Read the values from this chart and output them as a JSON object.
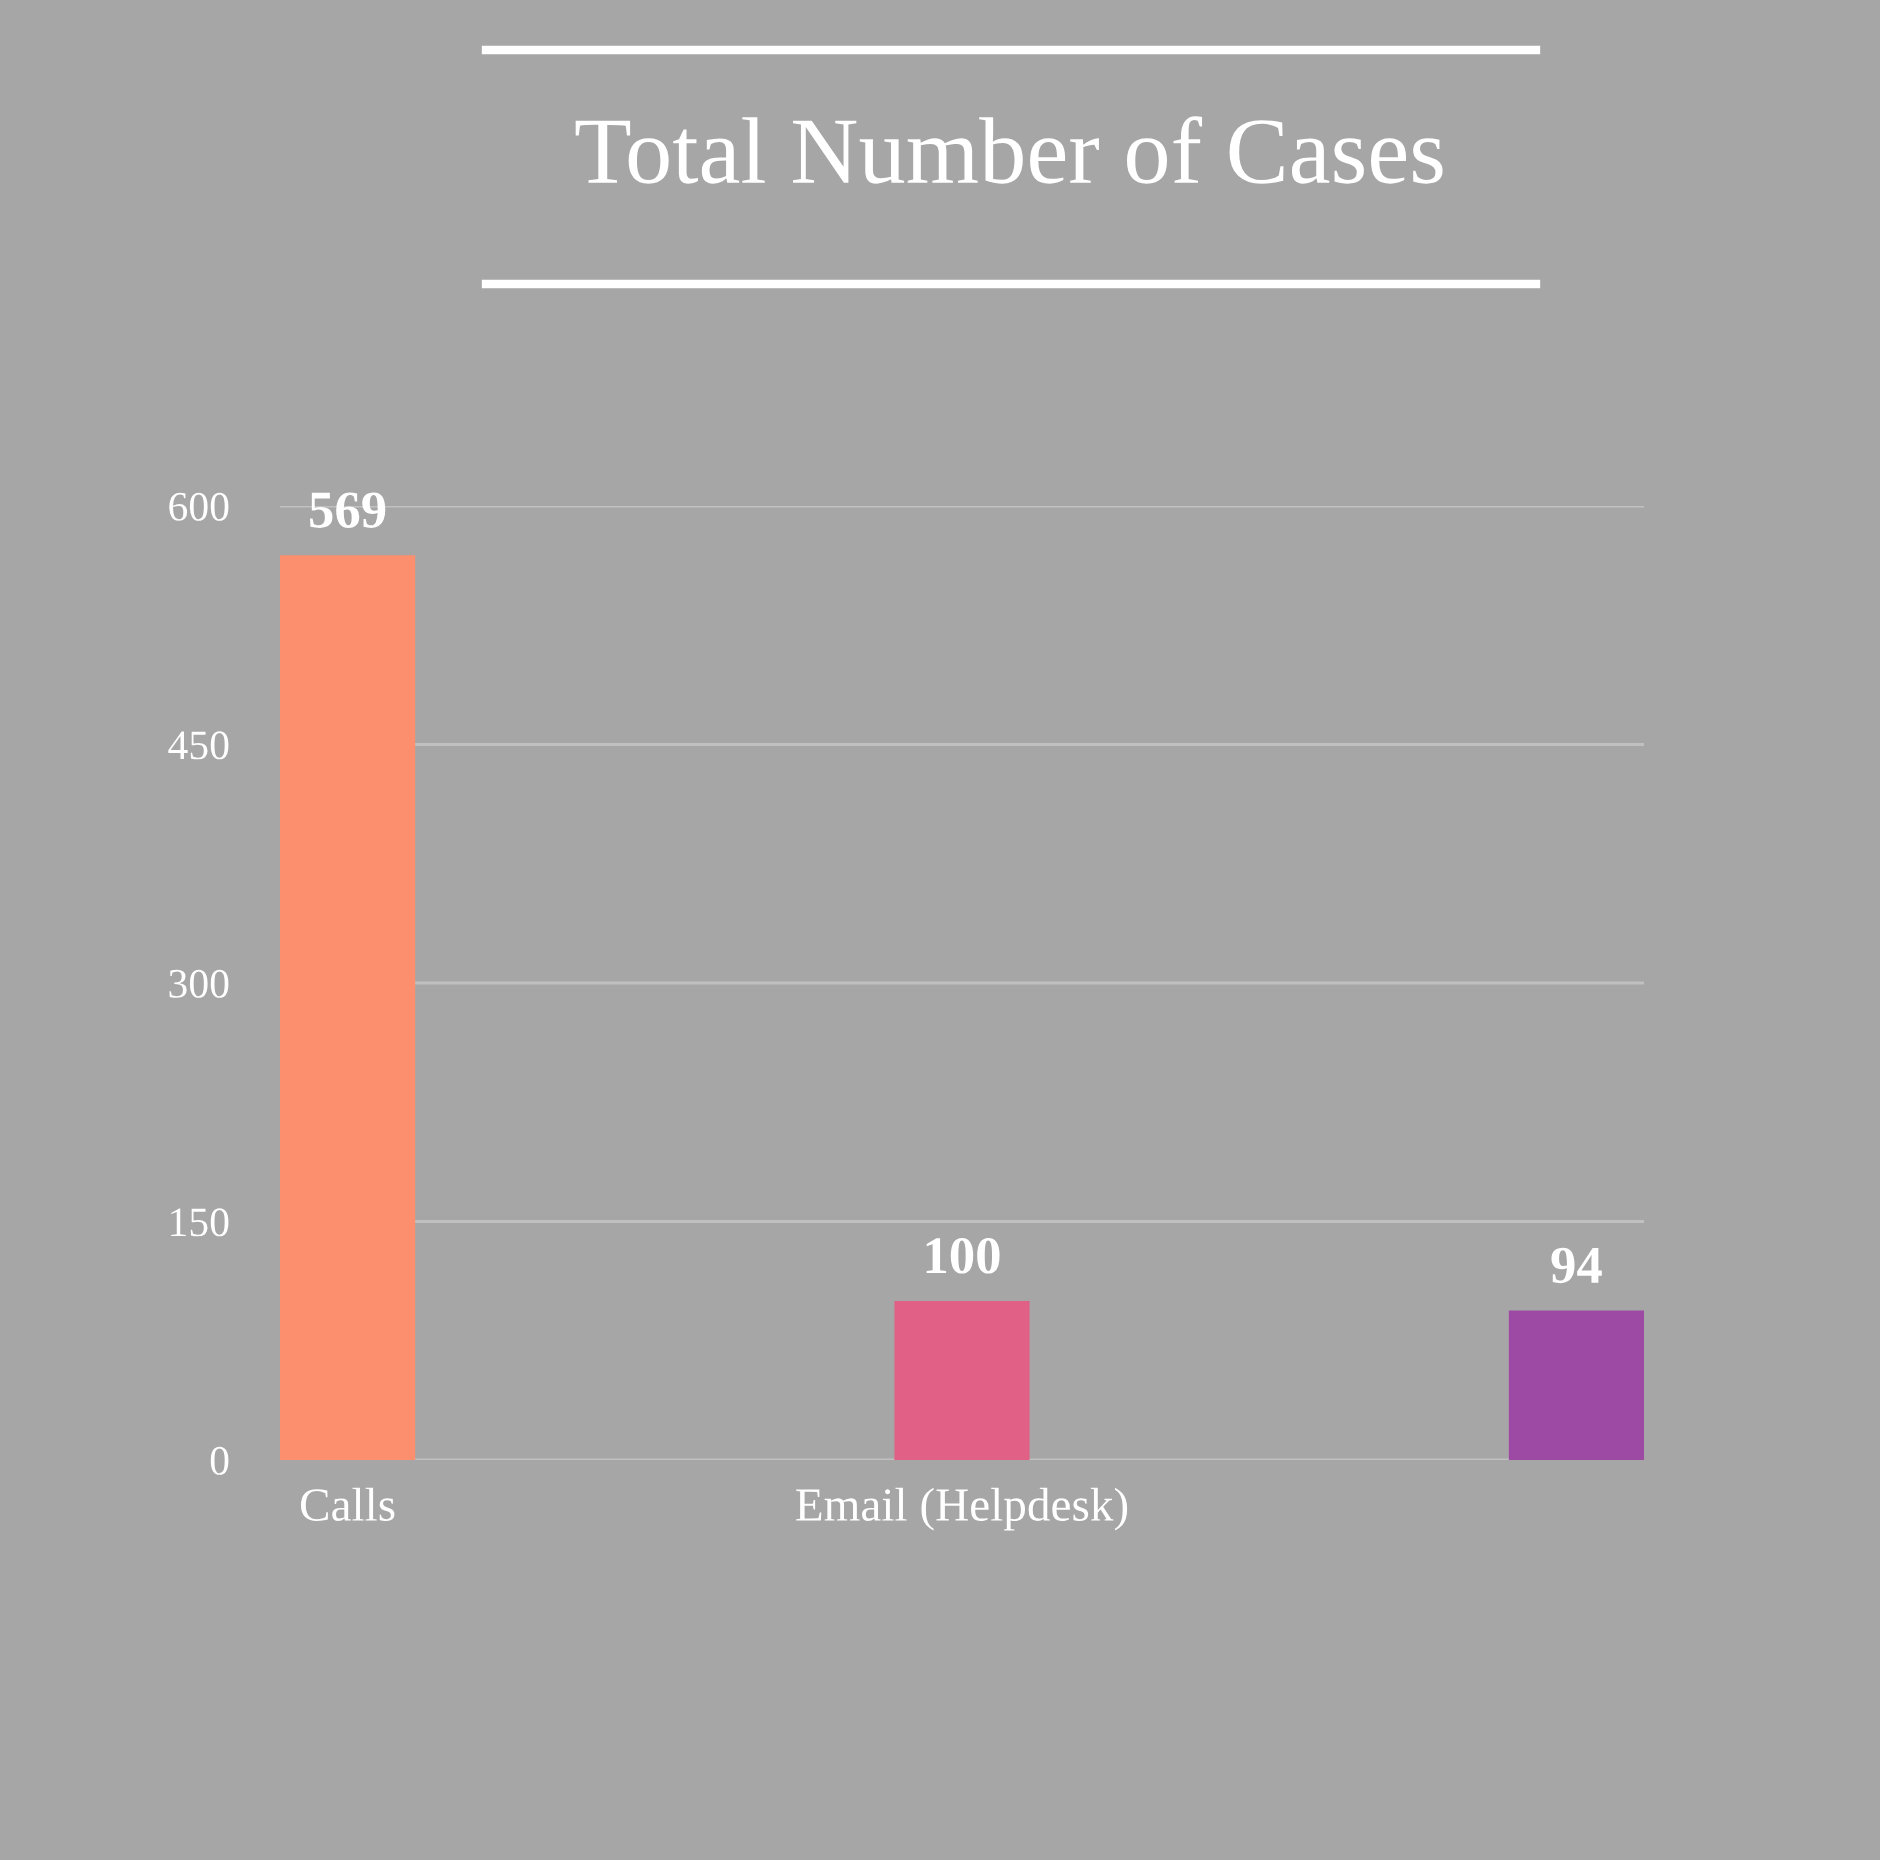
{
  "chart_data": {
    "type": "bar",
    "title": "Total Number of Cases",
    "categories": [
      "Calls",
      "Email (Helpdesk)",
      null
    ],
    "values": [
      569,
      100,
      94
    ],
    "colors": [
      "#fb8f6e",
      "#e06086",
      "#9c4aa3"
    ],
    "ylim": [
      0,
      600
    ],
    "yticks": [
      0,
      150,
      300,
      450,
      600
    ],
    "grid": "y",
    "data_labels": true
  }
}
